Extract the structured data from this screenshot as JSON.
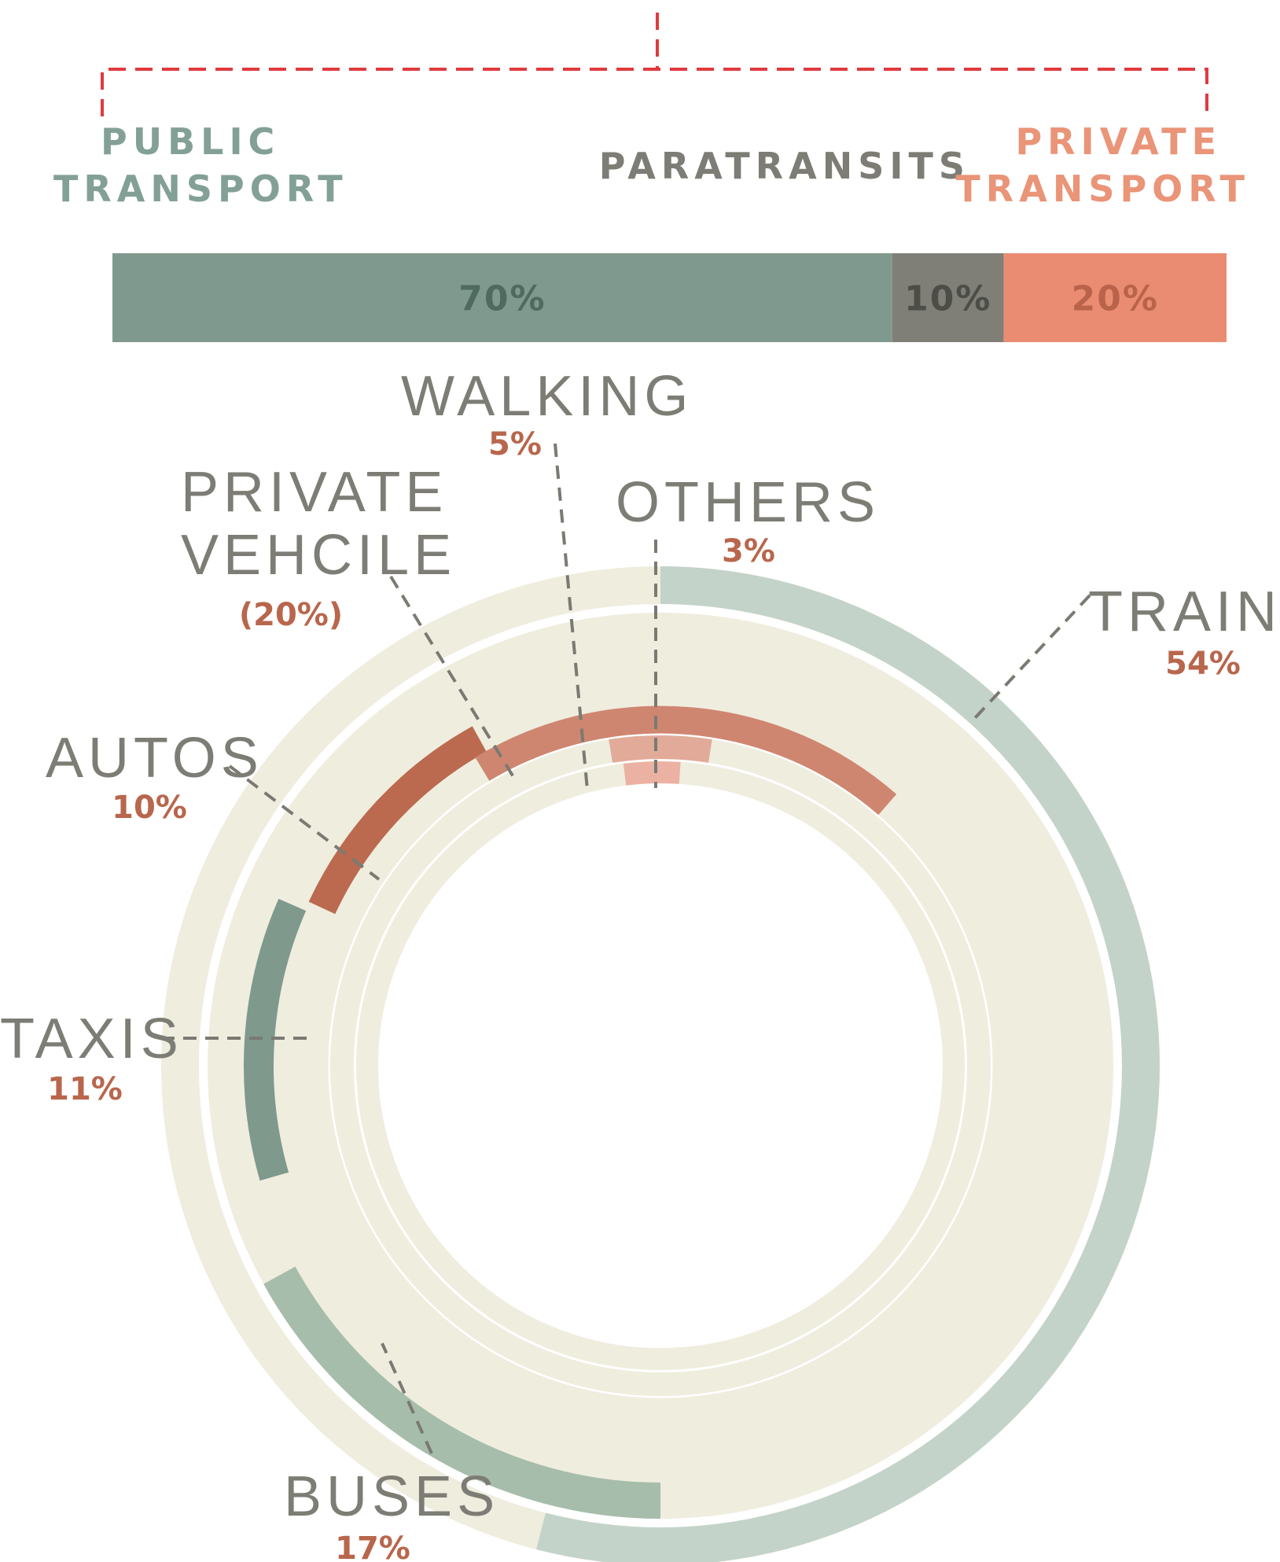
{
  "chart_data": [
    {
      "type": "bar",
      "orientation": "horizontal",
      "stacked": true,
      "categories": [
        "PUBLIC TRANSPORT",
        "PARATRANSITS",
        "PRIVATE TRANSPORT"
      ],
      "values": [
        70,
        10,
        20
      ],
      "data_labels": [
        "70%",
        "10%",
        "20%"
      ],
      "colors": [
        "#80998e",
        "#7f7f78",
        "#ea8c72"
      ],
      "text_colors": [
        "#83a097",
        "#7d7d76",
        "#ea9478"
      ],
      "label_colors": [
        "#4f6a60",
        "#4d4d48",
        "#b9644a"
      ]
    },
    {
      "type": "radial_bar",
      "categories": [
        "TRAINS",
        "BUSES",
        "TAXIS",
        "AUTOS",
        "PRIVATE VEHCILE",
        "WALKING",
        "OTHERS"
      ],
      "value_labels": [
        "54%",
        "17%",
        "11%",
        "10%",
        "(20%)",
        "5%",
        "3%"
      ],
      "values": [
        54,
        17,
        11,
        10,
        20,
        5,
        3
      ],
      "label_lines": [
        [
          "TRAINS"
        ],
        [
          "BUSES"
        ],
        [
          "TAXIS"
        ],
        [
          "AUTOS"
        ],
        [
          "PRIVATE",
          "VEHCILE"
        ],
        [
          "WALKING"
        ],
        [
          "OTHERS"
        ]
      ],
      "colors": [
        "#c3d3c9",
        "#a7bdac",
        "#7f998c",
        "#bb6a4f",
        "#cf8670",
        "#e1aa99",
        "#ebb2a3"
      ],
      "track_color": "#efedde",
      "value_color": "#b8664c",
      "label_color": "#7d7d75",
      "leader_color": "#7a7a72"
    }
  ]
}
